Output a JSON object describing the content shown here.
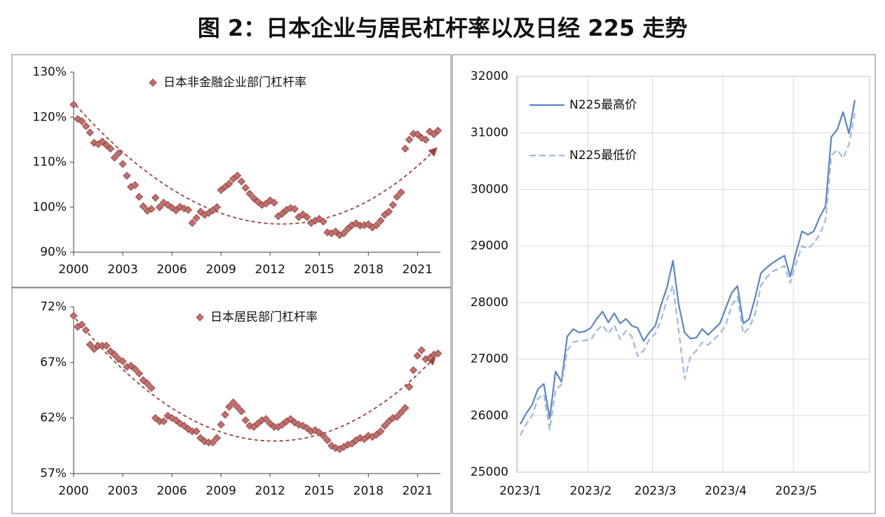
{
  "title": "图 2：日本企业与居民杠杆率以及日经 225 走势",
  "chart_data": [
    {
      "type": "scatter",
      "series": [
        {
          "name": "日本非金融企业部门杠杆率",
          "color": "#c0706e",
          "x": [
            2000,
            2000.25,
            2000.5,
            2000.75,
            2001,
            2001.25,
            2001.5,
            2001.75,
            2002,
            2002.25,
            2002.5,
            2002.75,
            2003,
            2003.25,
            2003.5,
            2003.75,
            2004,
            2004.25,
            2004.5,
            2004.75,
            2005,
            2005.25,
            2005.5,
            2005.75,
            2006,
            2006.25,
            2006.5,
            2006.75,
            2007,
            2007.25,
            2007.5,
            2007.75,
            2008,
            2008.25,
            2008.5,
            2008.75,
            2009,
            2009.25,
            2009.5,
            2009.75,
            2010,
            2010.25,
            2010.5,
            2010.75,
            2011,
            2011.25,
            2011.5,
            2011.75,
            2012,
            2012.25,
            2012.5,
            2012.75,
            2013,
            2013.25,
            2013.5,
            2013.75,
            2014,
            2014.25,
            2014.5,
            2014.75,
            2015,
            2015.25,
            2015.5,
            2015.75,
            2016,
            2016.25,
            2016.5,
            2016.75,
            2017,
            2017.25,
            2017.5,
            2017.75,
            2018,
            2018.25,
            2018.5,
            2018.75,
            2019,
            2019.25,
            2019.5,
            2019.75,
            2020,
            2020.25,
            2020.5,
            2020.75,
            2021,
            2021.25,
            2021.5,
            2021.75,
            2022,
            2022.25
          ],
          "values": [
            122.8,
            119.6,
            119.1,
            118.0,
            116.6,
            114.3,
            114.0,
            114.6,
            113.8,
            113.0,
            111.0,
            112.0,
            109.6,
            107.0,
            104.5,
            104.9,
            102.3,
            100.2,
            99.2,
            99.6,
            102.1,
            100.0,
            101.0,
            100.5,
            99.9,
            99.3,
            100.1,
            99.7,
            99.4,
            96.5,
            97.6,
            99.0,
            98.3,
            98.7,
            99.3,
            100.0,
            103.8,
            104.5,
            105.2,
            106.3,
            107.0,
            105.7,
            104.3,
            103.0,
            102.0,
            101.2,
            100.5,
            100.8,
            101.5,
            101.0,
            98.0,
            98.6,
            99.4,
            99.8,
            99.6,
            97.8,
            98.4,
            97.8,
            96.5,
            97.0,
            97.4,
            96.8,
            94.4,
            94.2,
            94.6,
            93.8,
            94.2,
            95.2,
            96.0,
            96.4,
            95.9,
            96.0,
            96.2,
            95.5,
            96.0,
            97.0,
            98.3,
            99.0,
            100.5,
            102.3,
            103.3,
            113.0,
            115.0,
            116.3,
            116.2,
            115.4,
            115.0,
            116.8,
            116.2,
            117.0
          ]
        }
      ],
      "xlim": [
        2000,
        2022.4
      ],
      "xticks": [
        2000,
        2003,
        2006,
        2009,
        2012,
        2015,
        2018,
        2021
      ],
      "ylim": [
        90,
        130
      ],
      "yticks": [
        {
          "value": 90,
          "label": "90%"
        },
        {
          "value": 100,
          "label": "100%"
        },
        {
          "value": 110,
          "label": "110%"
        },
        {
          "value": 120,
          "label": "120%"
        },
        {
          "value": 130,
          "label": "130%"
        }
      ]
    },
    {
      "type": "scatter",
      "series": [
        {
          "name": "日本居民部门杠杆率",
          "color": "#c0706e",
          "x": [
            2000,
            2000.25,
            2000.5,
            2000.75,
            2001,
            2001.25,
            2001.5,
            2001.75,
            2002,
            2002.25,
            2002.5,
            2002.75,
            2003,
            2003.25,
            2003.5,
            2003.75,
            2004,
            2004.25,
            2004.5,
            2004.75,
            2005,
            2005.25,
            2005.5,
            2005.75,
            2006,
            2006.25,
            2006.5,
            2006.75,
            2007,
            2007.25,
            2007.5,
            2007.75,
            2008,
            2008.25,
            2008.5,
            2008.75,
            2009,
            2009.25,
            2009.5,
            2009.75,
            2010,
            2010.25,
            2010.5,
            2010.75,
            2011,
            2011.25,
            2011.5,
            2011.75,
            2012,
            2012.25,
            2012.5,
            2012.75,
            2013,
            2013.25,
            2013.5,
            2013.75,
            2014,
            2014.25,
            2014.5,
            2014.75,
            2015,
            2015.25,
            2015.5,
            2015.75,
            2016,
            2016.25,
            2016.5,
            2016.75,
            2017,
            2017.25,
            2017.5,
            2017.75,
            2018,
            2018.25,
            2018.5,
            2018.75,
            2019,
            2019.25,
            2019.5,
            2019.75,
            2020,
            2020.25,
            2020.5,
            2020.75,
            2021,
            2021.25,
            2021.5,
            2021.75,
            2022,
            2022.25
          ],
          "values": [
            71.2,
            70.2,
            70.4,
            69.9,
            68.6,
            68.2,
            68.5,
            68.5,
            68.5,
            68.0,
            67.7,
            67.3,
            67.1,
            66.6,
            66.7,
            66.4,
            66.0,
            65.4,
            65.1,
            64.7,
            62.0,
            61.7,
            61.7,
            62.2,
            62.0,
            61.8,
            61.5,
            61.3,
            61.0,
            60.8,
            60.8,
            60.2,
            59.9,
            59.8,
            59.8,
            60.2,
            61.4,
            62.3,
            63.0,
            63.4,
            63.0,
            62.6,
            61.8,
            61.3,
            61.2,
            61.5,
            61.8,
            61.9,
            61.5,
            61.2,
            61.2,
            61.4,
            61.7,
            61.9,
            61.6,
            61.4,
            61.3,
            61.1,
            60.8,
            60.9,
            60.7,
            60.4,
            60.0,
            59.5,
            59.3,
            59.2,
            59.4,
            59.6,
            59.7,
            60.0,
            60.2,
            60.1,
            60.4,
            60.3,
            60.5,
            60.8,
            61.3,
            61.7,
            62.0,
            62.1,
            62.5,
            62.9,
            64.8,
            66.3,
            67.6,
            68.1,
            67.3,
            67.4,
            67.7,
            67.8
          ]
        }
      ],
      "xlim": [
        2000,
        2022.4
      ],
      "xticks": [
        2000,
        2003,
        2006,
        2009,
        2012,
        2015,
        2018,
        2021
      ],
      "ylim": [
        57,
        72
      ],
      "yticks": [
        {
          "value": 57,
          "label": "57%"
        },
        {
          "value": 62,
          "label": "62%"
        },
        {
          "value": 67,
          "label": "67%"
        },
        {
          "value": 72,
          "label": "72%"
        }
      ]
    },
    {
      "type": "line",
      "categories": [
        "2023/1",
        null,
        null,
        null,
        null,
        null,
        null,
        null,
        null,
        null,
        null,
        null,
        "2023/2",
        null,
        null,
        null,
        null,
        null,
        null,
        null,
        null,
        null,
        null,
        "2023/3",
        null,
        null,
        null,
        null,
        null,
        null,
        null,
        null,
        null,
        null,
        null,
        "2023/4",
        null,
        null,
        null,
        null,
        null,
        null,
        null,
        null,
        null,
        null,
        null,
        "2023/5",
        null,
        null,
        null,
        null,
        null,
        null,
        null,
        null,
        null,
        null
      ],
      "series": [
        {
          "name": "N225最高价",
          "color": "#5b84c5",
          "dashed": false,
          "values": [
            25850,
            26040,
            26190,
            26470,
            26560,
            25950,
            26780,
            26600,
            27400,
            27530,
            27470,
            27490,
            27550,
            27710,
            27840,
            27650,
            27810,
            27630,
            27710,
            27590,
            27550,
            27320,
            27470,
            27590,
            27960,
            28270,
            28740,
            27960,
            27470,
            27360,
            27380,
            27530,
            27430,
            27530,
            27630,
            27900,
            28170,
            28290,
            27630,
            27710,
            28080,
            28520,
            28620,
            28700,
            28770,
            28830,
            28460,
            28890,
            29260,
            29200,
            29260,
            29510,
            29700,
            30930,
            31060,
            31370,
            30990,
            31580
          ]
        },
        {
          "name": "N225最低价",
          "color": "#9db8e2",
          "dashed": true,
          "values": [
            25650,
            25850,
            26000,
            26300,
            26380,
            25750,
            26450,
            26550,
            27150,
            27300,
            27320,
            27330,
            27340,
            27500,
            27600,
            27450,
            27600,
            27350,
            27500,
            27400,
            27050,
            27150,
            27350,
            27450,
            27700,
            28050,
            28300,
            27500,
            26650,
            27050,
            27150,
            27300,
            27250,
            27350,
            27450,
            27600,
            27950,
            28100,
            27450,
            27550,
            27800,
            28300,
            28450,
            28550,
            28600,
            28650,
            28350,
            28700,
            29000,
            28950,
            29050,
            29200,
            29450,
            30600,
            30700,
            30550,
            30800,
            31350
          ]
        }
      ],
      "ylim": [
        25000,
        32000
      ],
      "yticks": [
        25000,
        26000,
        27000,
        28000,
        29000,
        30000,
        31000,
        32000
      ],
      "grid": true,
      "legend": "upper left"
    }
  ]
}
